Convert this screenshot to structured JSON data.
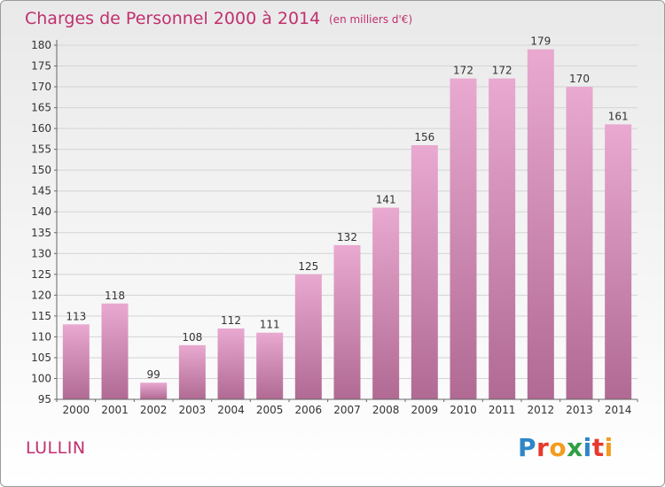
{
  "header": {
    "title": "Charges de Personnel 2000 à 2014",
    "subtitle": "(en milliers d'€)"
  },
  "footer": {
    "commune": "LULLIN",
    "brand": "Proxiti",
    "brand_letters": [
      {
        "char": "P",
        "color": "#2e86c8"
      },
      {
        "char": "r",
        "color": "#e63a2e"
      },
      {
        "char": "o",
        "color": "#f39c1f"
      },
      {
        "char": "x",
        "color": "#2f9e44"
      },
      {
        "char": "i",
        "color": "#2e86c8"
      },
      {
        "char": "t",
        "color": "#e63a2e"
      },
      {
        "char": "i",
        "color": "#f39c1f"
      }
    ]
  },
  "colors": {
    "bar_top": "#e9a9d0",
    "bar_bottom": "#b06a93",
    "title": "#c0306e",
    "axis": "#666666",
    "grid": "#d4d4d4"
  },
  "chart_data": {
    "type": "bar",
    "title": "Charges de Personnel 2000 à 2014",
    "subtitle": "(en milliers d'€)",
    "xlabel": "",
    "ylabel": "",
    "categories": [
      "2000",
      "2001",
      "2002",
      "2003",
      "2004",
      "2005",
      "2006",
      "2007",
      "2008",
      "2009",
      "2010",
      "2011",
      "2012",
      "2013",
      "2014"
    ],
    "values": [
      113,
      118,
      99,
      108,
      112,
      111,
      125,
      132,
      141,
      156,
      172,
      172,
      179,
      170,
      161
    ],
    "ylim": [
      95,
      180
    ],
    "yticks": [
      95,
      100,
      105,
      110,
      115,
      120,
      125,
      130,
      135,
      140,
      145,
      150,
      155,
      160,
      165,
      170,
      175,
      180
    ],
    "grid": true,
    "legend": "none"
  }
}
